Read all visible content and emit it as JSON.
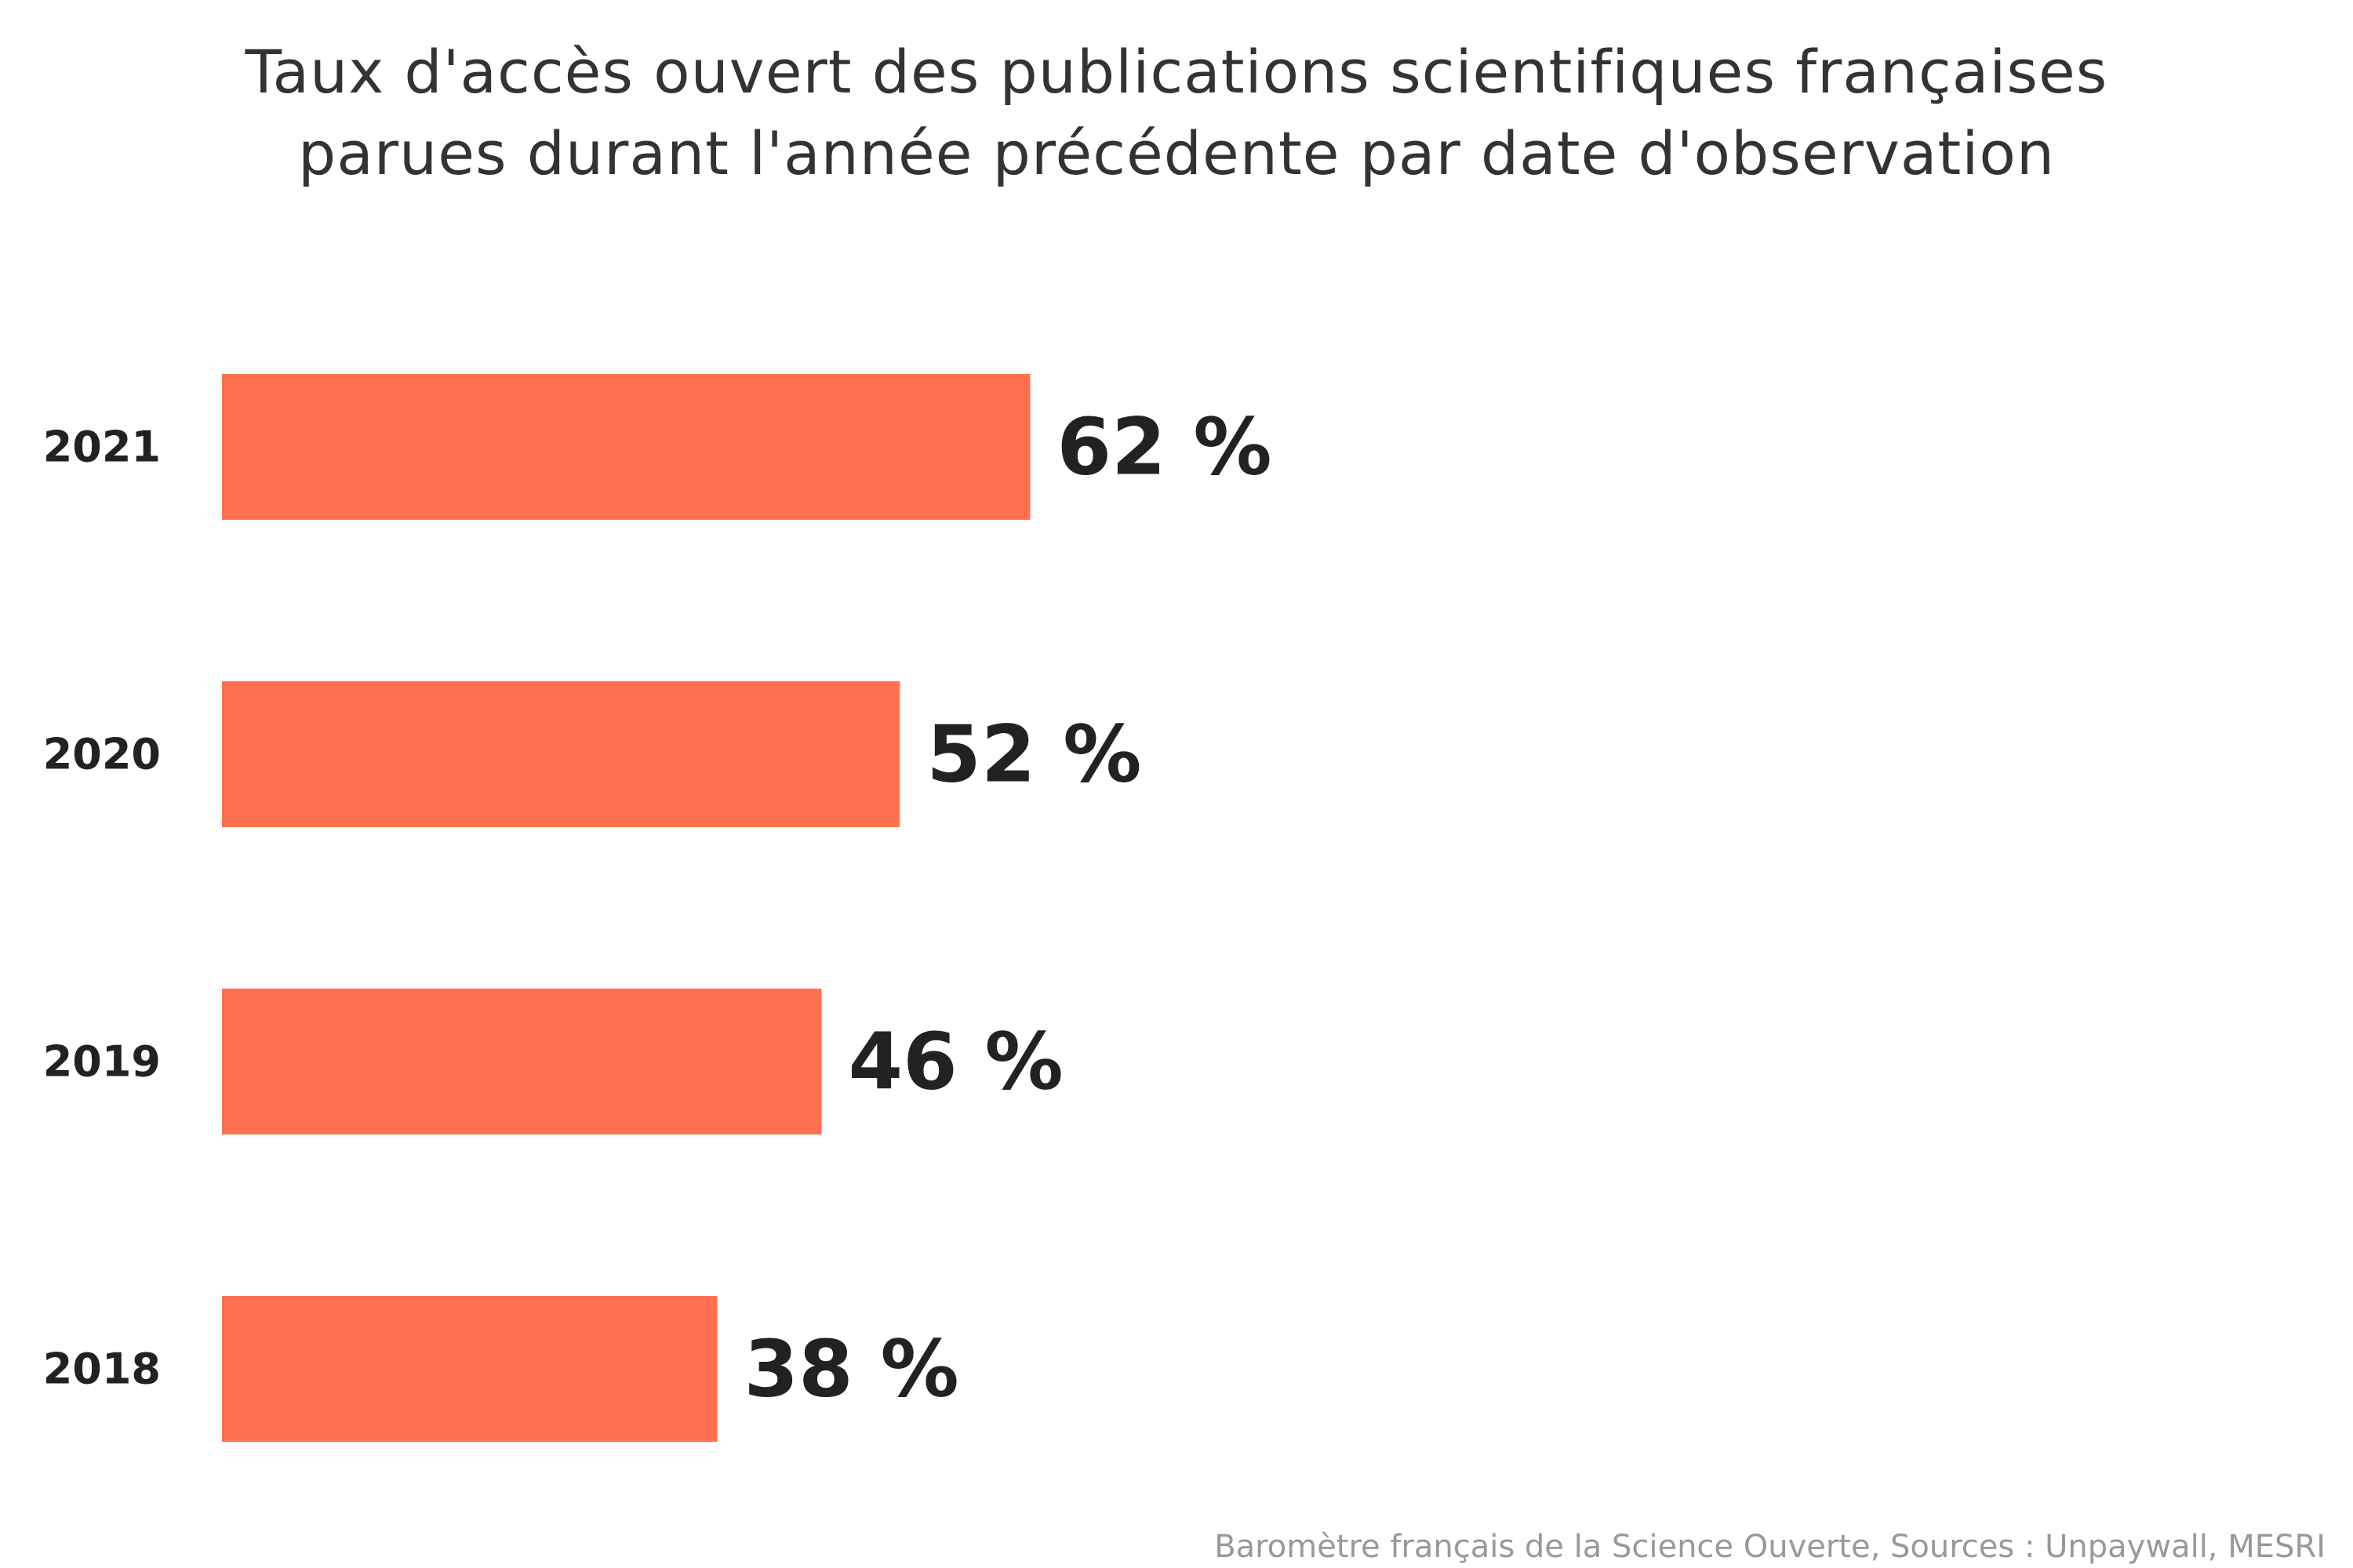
{
  "chart_data": {
    "type": "bar",
    "orientation": "horizontal",
    "title_lines": [
      "Taux d'accès ouvert des publications scientifiques françaises",
      "parues durant l'année précédente par date d'observation"
    ],
    "categories": [
      "2021",
      "2020",
      "2019",
      "2018"
    ],
    "values": [
      62,
      52,
      46,
      38
    ],
    "value_labels": [
      "62 %",
      "52 %",
      "46 %",
      "38 %"
    ],
    "xlim": [
      0,
      100
    ],
    "grid": false,
    "legend": "none",
    "bar_color": "#ff7050",
    "source": "Baromètre français de la Science Ouverte, Sources : Unpaywall, MESRI"
  }
}
